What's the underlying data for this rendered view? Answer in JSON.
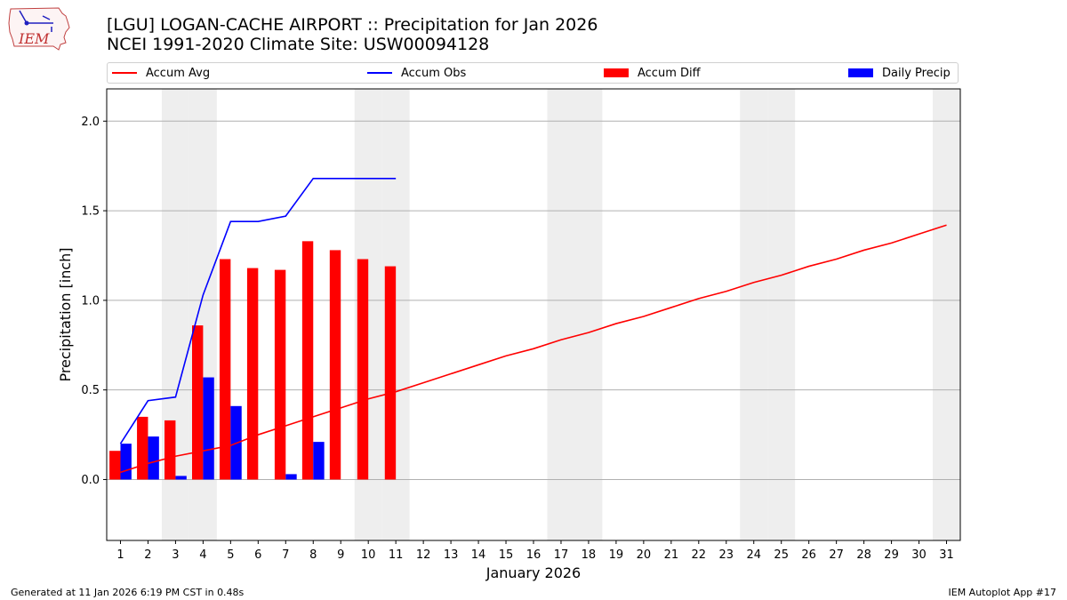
{
  "header": {
    "title_line1": "[LGU] LOGAN-CACHE AIRPORT :: Precipitation for Jan 2026",
    "title_line2": "NCEI 1991-2020 Climate Site: USW00094128",
    "logo_text": "IEM"
  },
  "footer": {
    "generated": "Generated at 11 Jan 2026 6:19 PM CST in 0.48s",
    "app": "IEM Autoplot App #17"
  },
  "colors": {
    "accum_avg": "#ff0000",
    "accum_obs": "#0000ff",
    "accum_diff": "#ff0000",
    "daily_precip": "#0000ff",
    "weekend_shade": "#eeeeee",
    "grid": "#b0b0b0"
  },
  "chart_data": {
    "type": "bar",
    "xlabel": "January 2026",
    "ylabel": "Precipitation [inch]",
    "ylim": [
      -0.34,
      2.18
    ],
    "yticks": [
      0.0,
      0.5,
      1.0,
      1.5,
      2.0
    ],
    "ytick_labels": [
      "0.0",
      "0.5",
      "1.0",
      "1.5",
      "2.0"
    ],
    "xlim": [
      0.5,
      31.5
    ],
    "days": [
      1,
      2,
      3,
      4,
      5,
      6,
      7,
      8,
      9,
      10,
      11,
      12,
      13,
      14,
      15,
      16,
      17,
      18,
      19,
      20,
      21,
      22,
      23,
      24,
      25,
      26,
      27,
      28,
      29,
      30,
      31
    ],
    "weekend_days": [
      3,
      4,
      10,
      11,
      17,
      18,
      24,
      25,
      31
    ],
    "grid": "horizontal",
    "legend_placement": "top",
    "series": [
      {
        "name": "Accum Avg",
        "kind": "line",
        "values": [
          0.04,
          0.09,
          0.13,
          0.16,
          0.19,
          0.25,
          0.3,
          0.35,
          0.4,
          0.45,
          0.49,
          0.54,
          0.59,
          0.64,
          0.69,
          0.73,
          0.78,
          0.82,
          0.87,
          0.91,
          0.96,
          1.01,
          1.05,
          1.1,
          1.14,
          1.19,
          1.23,
          1.28,
          1.32,
          1.37,
          1.42
        ]
      },
      {
        "name": "Accum Obs",
        "kind": "line",
        "values": [
          0.2,
          0.44,
          0.46,
          1.03,
          1.44,
          1.44,
          1.47,
          1.68,
          1.68,
          1.68,
          1.68
        ]
      },
      {
        "name": "Accum Diff",
        "kind": "bar",
        "values": [
          0.16,
          0.35,
          0.33,
          0.86,
          1.23,
          1.18,
          1.17,
          1.33,
          1.28,
          1.23,
          1.19
        ]
      },
      {
        "name": "Daily Precip",
        "kind": "bar",
        "values": [
          0.2,
          0.24,
          0.02,
          0.57,
          0.41,
          0.0,
          0.03,
          0.21,
          0.0,
          0.0,
          0.0
        ]
      }
    ]
  }
}
